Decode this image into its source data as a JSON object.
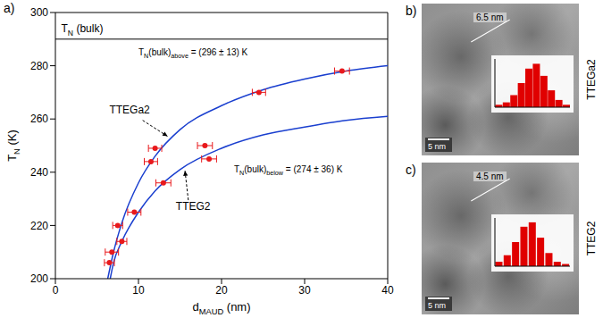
{
  "chart_data": [
    {
      "type": "scatter",
      "panel": "a)",
      "xlabel": [
        {
          "t": "d"
        },
        {
          "t": "MAUD",
          "sub": true
        },
        {
          "t": " (nm)"
        }
      ],
      "ylabel": [
        {
          "t": "T"
        },
        {
          "t": "N",
          "sub": true
        },
        {
          "t": " (K)"
        }
      ],
      "xlim": [
        0,
        40
      ],
      "xticks": [
        0,
        10,
        20,
        30,
        40
      ],
      "ylim": [
        200,
        300
      ],
      "yticks": [
        200,
        220,
        240,
        260,
        280,
        300
      ],
      "reference_line": {
        "y": 290,
        "label": [
          {
            "t": "T"
          },
          {
            "t": "N",
            "sub": true
          },
          {
            "t": " (bulk)"
          }
        ]
      },
      "series": [
        {
          "type": "scatter",
          "color": "#e8191c",
          "marker": "circle",
          "x": [
            6.5,
            6.8,
            7.5,
            8,
            9.5,
            11.5,
            12,
            13,
            18,
            18.5,
            24.5,
            34.5
          ],
          "values": [
            206,
            210,
            220,
            214,
            225,
            244,
            249,
            236,
            250,
            245,
            270,
            278
          ],
          "x_error": [
            0.6,
            0.8,
            0.6,
            0.6,
            0.8,
            0.8,
            0.8,
            0.9,
            0.9,
            0.9,
            0.8,
            0.9
          ]
        },
        {
          "type": "line",
          "name": "TTEGa2",
          "color": "#1a3fcf",
          "line_style": "solid",
          "x": [
            6.3,
            7,
            8,
            10,
            12,
            15,
            20,
            25,
            30,
            35,
            40
          ],
          "values": [
            200,
            210,
            221,
            236,
            246,
            256,
            265,
            271,
            275,
            278,
            280
          ],
          "annotation": [
            {
              "t": "T"
            },
            {
              "t": "N",
              "sub": true
            },
            {
              "t": "(bulk)"
            },
            {
              "t": "above",
              "sub": true
            },
            {
              "t": " = (296 ± 13) K"
            }
          ]
        },
        {
          "type": "line",
          "name": "TTEG2",
          "color": "#1a3fcf",
          "line_style": "solid",
          "x": [
            6.6,
            7,
            8,
            10,
            12,
            15,
            20,
            25,
            30,
            35,
            40
          ],
          "values": [
            200,
            206,
            214,
            225,
            233,
            241,
            249,
            254,
            257,
            259.5,
            261
          ],
          "annotation": [
            {
              "t": "T"
            },
            {
              "t": "N",
              "sub": true
            },
            {
              "t": "(bulk)"
            },
            {
              "t": "below",
              "sub": true
            },
            {
              "t": " = (274 ± 36) K"
            }
          ]
        }
      ]
    },
    {
      "type": "image",
      "panel": "b)",
      "side_label": "TTEGa2",
      "size_label": "6.5 nm",
      "scale_bar": "5 nm",
      "histogram": {
        "bins": [
          4,
          4.5,
          5,
          5.5,
          6,
          6.5,
          7,
          7.5,
          8,
          8.5,
          9
        ],
        "counts": [
          1,
          2,
          5,
          10,
          16,
          18,
          13,
          7,
          3,
          1
        ],
        "color": "#e00000",
        "ylim": [
          0,
          20
        ],
        "tick_labels": false
      }
    },
    {
      "type": "image",
      "panel": "c)",
      "side_label": "TTEG2",
      "size_label": "4.5 nm",
      "scale_bar": "5 nm",
      "histogram": {
        "bins": [
          2.5,
          3,
          3.5,
          4,
          4.5,
          5,
          5.5,
          6,
          6.5,
          7
        ],
        "counts": [
          2,
          5,
          11,
          18,
          20,
          13,
          6,
          2,
          1
        ],
        "color": "#e00000",
        "ylim": [
          0,
          22
        ],
        "tick_labels": false
      }
    }
  ]
}
